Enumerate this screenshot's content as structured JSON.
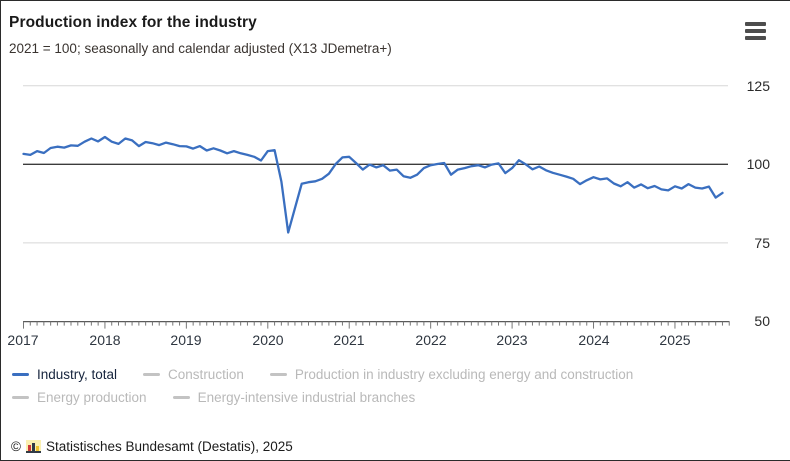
{
  "header": {
    "title": "Production index for the industry",
    "subtitle": "2021 = 100; seasonally and calendar adjusted (X13 JDemetra+)",
    "menu_icon": "hamburger-icon"
  },
  "chart_data": {
    "type": "line",
    "title": "Production index for the industry",
    "subtitle": "2021 = 100; seasonally and calendar adjusted (X13 JDemetra+)",
    "x_tick_labels": [
      "2017",
      "2018",
      "2019",
      "2020",
      "2021",
      "2022",
      "2023",
      "2024",
      "2025"
    ],
    "x_range_note": "monthly data, January 2017 to August 2025",
    "y_ticks": [
      50,
      75,
      100,
      125
    ],
    "ylim": [
      50,
      128
    ],
    "baseline_value": 100,
    "grid": "horizontal",
    "legend_position": "bottom",
    "series": [
      {
        "name": "Industry, total",
        "active": true,
        "color": "#3a6fc0",
        "monthly_values": [
          103.3,
          103.0,
          104.2,
          103.6,
          105.2,
          105.6,
          105.3,
          106.0,
          105.9,
          107.2,
          108.2,
          107.3,
          108.7,
          107.2,
          106.5,
          108.2,
          107.6,
          105.8,
          107.1,
          106.7,
          106.1,
          106.9,
          106.4,
          105.8,
          105.7,
          105.0,
          105.8,
          104.4,
          105.1,
          104.4,
          103.5,
          104.2,
          103.5,
          103.0,
          102.4,
          101.2,
          104.2,
          104.5,
          94.5,
          78.3,
          86.0,
          93.8,
          94.3,
          94.6,
          95.4,
          97.0,
          100.1,
          102.2,
          102.4,
          100.4,
          98.3,
          99.9,
          99.0,
          99.7,
          98.0,
          98.3,
          96.2,
          95.7,
          96.7,
          98.8,
          99.7,
          100.1,
          100.4,
          96.7,
          98.3,
          98.8,
          99.4,
          99.7,
          99.0,
          99.9,
          100.3,
          97.2,
          98.8,
          101.3,
          100.0,
          98.4,
          99.3,
          98.1,
          97.3,
          96.7,
          96.1,
          95.4,
          93.7,
          94.9,
          95.9,
          95.2,
          95.5,
          93.9,
          93.0,
          94.3,
          92.6,
          93.6,
          92.4,
          93.1,
          92.0,
          91.7,
          93.0,
          92.3,
          93.7,
          92.6,
          92.3,
          92.9,
          89.4,
          90.9
        ]
      },
      {
        "name": "Construction",
        "active": false
      },
      {
        "name": "Production in industry excluding energy and construction",
        "active": false
      },
      {
        "name": "Energy production",
        "active": false
      },
      {
        "name": "Energy-intensive industrial branches",
        "active": false
      }
    ]
  },
  "footer": {
    "copyright": "©",
    "logo_icon": "destatis-logo-icon",
    "source": "Statistisches Bundesamt (Destatis), 2025"
  },
  "colors": {
    "accent_line": "#3a6fc0",
    "inactive_legend": "#c3c3c3",
    "gridline": "#d7d7d7",
    "baseline": "#3c3c3c",
    "axis": "#5a5a5a",
    "tick": "#777777"
  }
}
